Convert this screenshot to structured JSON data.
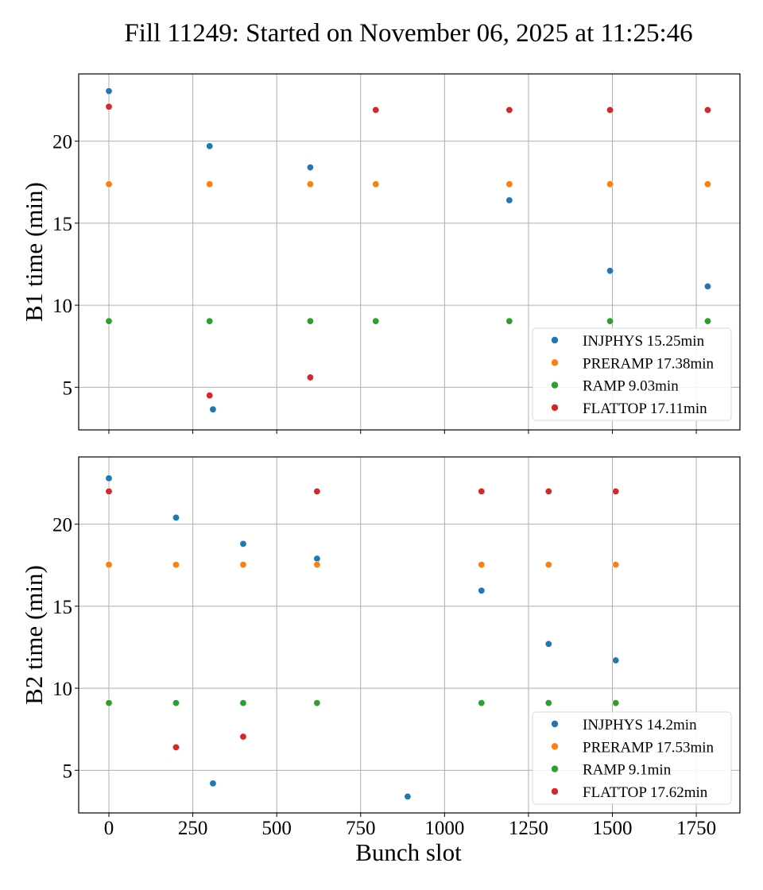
{
  "figure": {
    "title": "Fill 11249: Started on November 06, 2025 at 11:25:46"
  },
  "chart_data": [
    {
      "type": "scatter",
      "panel": "top",
      "title": "",
      "xlabel": "",
      "ylabel": "B1 time (min)",
      "xlim": [
        -90,
        1880
      ],
      "ylim": [
        2.4,
        24.1
      ],
      "xticks": [
        0,
        250,
        500,
        750,
        1000,
        1250,
        1500,
        1750
      ],
      "xtick_labels_visible": false,
      "yticks": [
        5,
        10,
        15,
        20
      ],
      "grid": true,
      "legend_position": "lower-right",
      "series": [
        {
          "name": "INJPHYS 15.25min",
          "color": "#1f77b4",
          "points": [
            [
              0,
              23.05
            ],
            [
              300,
              19.7
            ],
            [
              310,
              3.65
            ],
            [
              600,
              18.4
            ],
            [
              1193,
              16.4
            ],
            [
              1493,
              12.1
            ],
            [
              1784,
              11.15
            ]
          ]
        },
        {
          "name": "PRERAMP 17.38min",
          "color": "#ff7f0e",
          "points": [
            [
              0,
              17.38
            ],
            [
              300,
              17.38
            ],
            [
              600,
              17.38
            ],
            [
              795,
              17.38
            ],
            [
              1193,
              17.38
            ],
            [
              1493,
              17.38
            ],
            [
              1784,
              17.38
            ]
          ]
        },
        {
          "name": "RAMP 9.03min",
          "color": "#2ca02c",
          "points": [
            [
              0,
              9.03
            ],
            [
              300,
              9.03
            ],
            [
              600,
              9.03
            ],
            [
              795,
              9.03
            ],
            [
              1193,
              9.03
            ],
            [
              1493,
              9.03
            ],
            [
              1784,
              9.03
            ]
          ]
        },
        {
          "name": "FLATTOP 17.11min",
          "color": "#d62728",
          "points": [
            [
              0,
              22.1
            ],
            [
              300,
              4.5
            ],
            [
              600,
              5.6
            ],
            [
              795,
              21.9
            ],
            [
              1193,
              21.9
            ],
            [
              1493,
              21.9
            ],
            [
              1784,
              21.9
            ]
          ]
        }
      ]
    },
    {
      "type": "scatter",
      "panel": "bottom",
      "title": "",
      "xlabel": "Bunch slot",
      "ylabel": "B2 time (min)",
      "xlim": [
        -90,
        1880
      ],
      "ylim": [
        2.4,
        24.1
      ],
      "xticks": [
        0,
        250,
        500,
        750,
        1000,
        1250,
        1500,
        1750
      ],
      "xtick_labels_visible": true,
      "yticks": [
        5,
        10,
        15,
        20
      ],
      "grid": true,
      "legend_position": "lower-right",
      "series": [
        {
          "name": "INJPHYS 14.2min",
          "color": "#1f77b4",
          "points": [
            [
              0,
              22.8
            ],
            [
              200,
              20.4
            ],
            [
              310,
              4.2
            ],
            [
              400,
              18.8
            ],
            [
              620,
              17.9
            ],
            [
              890,
              3.4
            ],
            [
              1110,
              15.95
            ],
            [
              1310,
              12.7
            ],
            [
              1510,
              11.7
            ]
          ]
        },
        {
          "name": "PRERAMP 17.53min",
          "color": "#ff7f0e",
          "points": [
            [
              0,
              17.53
            ],
            [
              200,
              17.53
            ],
            [
              400,
              17.53
            ],
            [
              620,
              17.53
            ],
            [
              1110,
              17.53
            ],
            [
              1310,
              17.53
            ],
            [
              1510,
              17.53
            ]
          ]
        },
        {
          "name": "RAMP 9.1min",
          "color": "#2ca02c",
          "points": [
            [
              0,
              9.1
            ],
            [
              200,
              9.1
            ],
            [
              400,
              9.1
            ],
            [
              620,
              9.1
            ],
            [
              1110,
              9.1
            ],
            [
              1310,
              9.1
            ],
            [
              1510,
              9.1
            ]
          ]
        },
        {
          "name": "FLATTOP 17.62min",
          "color": "#d62728",
          "points": [
            [
              0,
              22.0
            ],
            [
              200,
              6.4
            ],
            [
              400,
              7.05
            ],
            [
              620,
              22.0
            ],
            [
              1110,
              22.0
            ],
            [
              1310,
              22.0
            ],
            [
              1510,
              22.0
            ]
          ]
        }
      ]
    }
  ]
}
